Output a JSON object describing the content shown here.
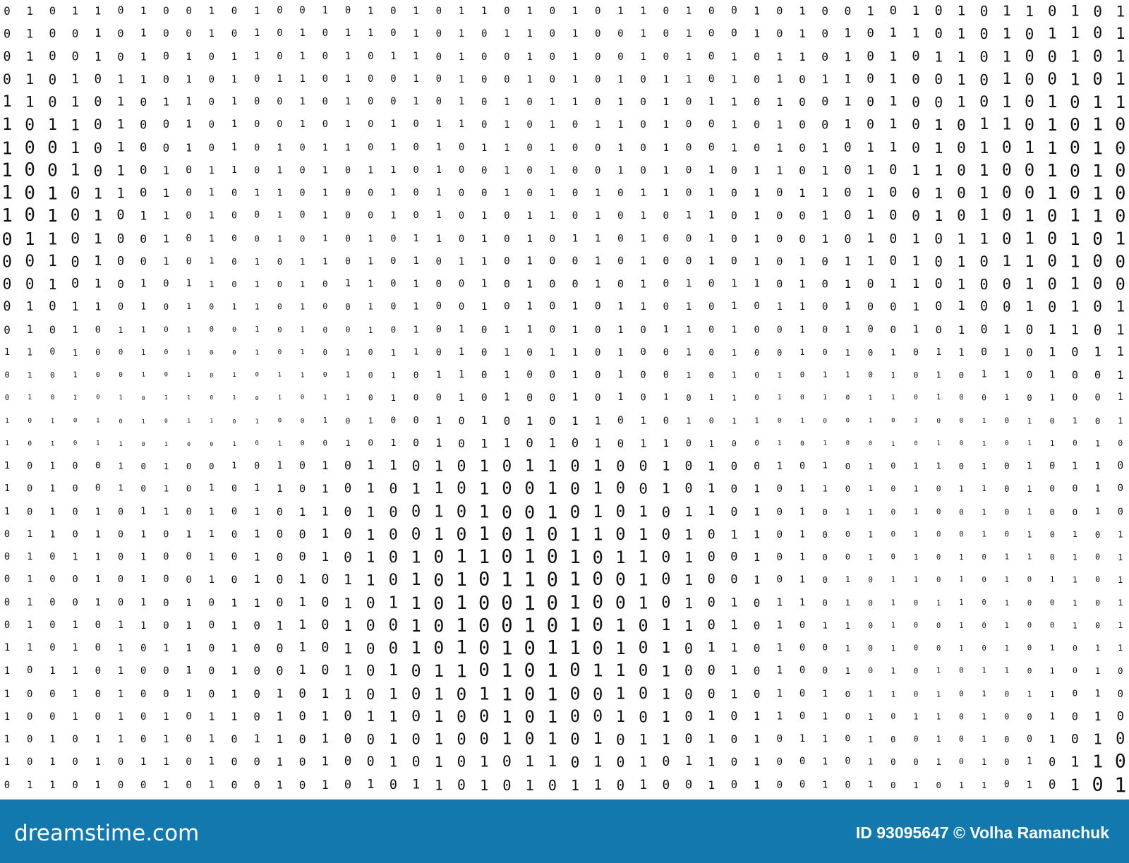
{
  "digits": {
    "rows": [
      "01011010010100101010110101011010010100101010110101",
      "01001010010101011010101101001010010101011010101101",
      "01001010101101010110100101001010101101010110100101",
      "01010110101011010010100101010110101011010010100101",
      "11010101101001010010101011010101101001010010101011",
      "10110100101001010101101010110100101001010101101010",
      "10010100101010110101011010010100101010110101011010",
      "10010101011010101101001010010101011010101101001010",
      "10101101010110100101001010101101010110100101001010",
      "10101011010010100101010110101011010010100101010110",
      "01101001010010101011010101101001010010101011010101",
      "00101001010101101010110100101001010101101010110100",
      "00101010110101011010010100101010110101011010010100",
      "01011010101101001010010101011010101101001010010101",
      "01010110100101001010101101010110100101001010101101",
      "11010010100101010110101011010010100101010110101011",
      "01010010101011010101101001010010101011010101101001",
      "01010101101010110100101001010101101010110100101001",
      "10101010110100101001010101101010110100101001010101",
      "10101101001010010101011010101101001010010101011010",
      "10100101001010101101010110100101001010101101010110",
      "10100101010110101011010010100101010110101011010010",
      "10101011010101101001010010101011010101101001010010",
      "01101010110100101001010101101010110100101001010101",
      "01011010010100101010110101011010010100101010110101",
      "01001010010101011010101101001010010101011010101101",
      "01001010101101010110100101001010101101010110100101",
      "01010110101011010010100101010110101011010010100101",
      "11010101101001010010101011010101101001010010101011",
      "10110100101001010101101010110100101001010101101010",
      "10010100101010110101011010010100101010110101011010",
      "10010101011010101101001010010101011010101101001010",
      "10101101010110100101001010101101010110100101001010",
      "10101011010010100101010110101011010010100101010110",
      "01101001010010101011010101101001010010101011010101"
    ],
    "color": "#111111"
  },
  "footer": {
    "logo": "dreamstime.com",
    "credit": "ID 93095647 © Volha Ramanchuk",
    "background": "#1278ae"
  }
}
